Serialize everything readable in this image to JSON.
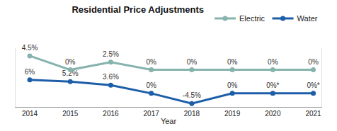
{
  "chart_data": {
    "type": "line",
    "title": "Residential Price Adjustments",
    "x_label": "Year",
    "categories": [
      "2014",
      "2015",
      "2016",
      "2017",
      "2018",
      "2019",
      "2020",
      "2021"
    ],
    "series": [
      {
        "name": "Electric",
        "color": "#86b3ad",
        "marker": "circle",
        "axis": "y2",
        "values": [
          4.5,
          0,
          2.5,
          0,
          0,
          0,
          0,
          0
        ],
        "value_labels": [
          "4.5%",
          "0%",
          "2.5%",
          "0%",
          "0%",
          "0%",
          "0%",
          "0%"
        ]
      },
      {
        "name": "Water",
        "color": "#1d5ea8",
        "marker": "circle",
        "values": [
          6,
          5.2,
          3.6,
          0,
          -4.5,
          0,
          0,
          0
        ],
        "value_labels": [
          "6%",
          "5.2%",
          "3.6%",
          "0%",
          "-4.5%",
          "0%",
          "0%*",
          "0%*"
        ]
      }
    ],
    "ylim": [
      -6,
      20
    ],
    "y2lim": [
      -12,
      7
    ],
    "tick_labels": "x",
    "data_labels": true,
    "grid": false,
    "legend": "top right"
  }
}
